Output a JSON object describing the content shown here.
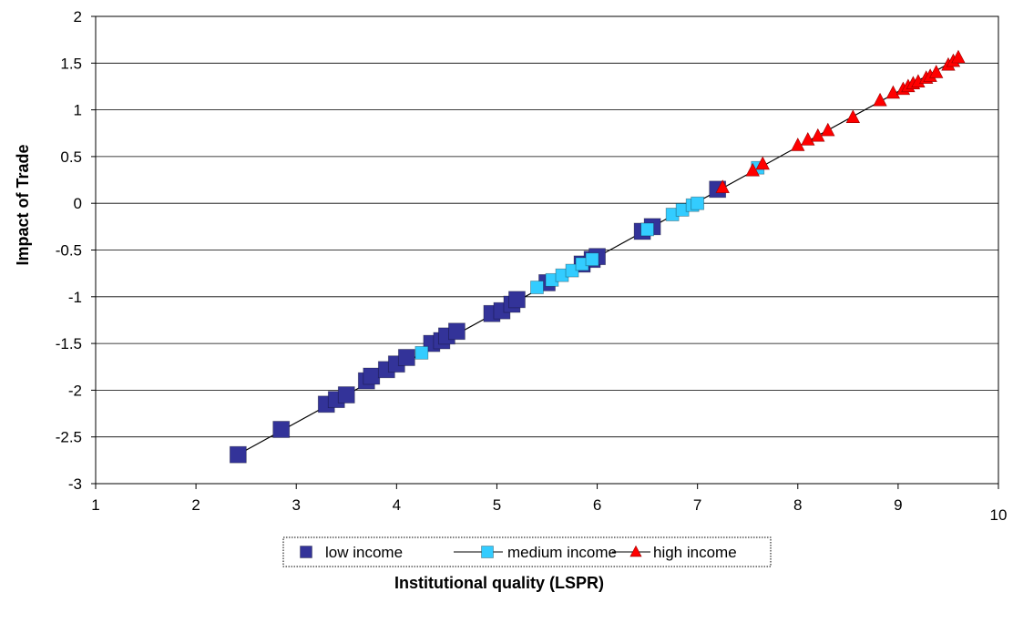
{
  "chart_data": {
    "type": "scatter",
    "title": "",
    "xlabel": "Institutional quality (LSPR)",
    "ylabel": "Impact of Trade",
    "xlim": [
      1,
      10
    ],
    "ylim": [
      -3,
      2
    ],
    "x_ticks": [
      "1",
      "2",
      "3",
      "4",
      "5",
      "6",
      "7",
      "8",
      "9",
      "10"
    ],
    "y_ticks": [
      "2",
      "1.5",
      "1",
      "0.5",
      "0",
      "-0.5",
      "-1",
      "-1.5",
      "-2",
      "-2.5",
      "-3"
    ],
    "grid": "horizontal",
    "legend_position": "bottom",
    "trendline": {
      "x": [
        2.4,
        9.6
      ],
      "y": [
        -2.7,
        1.55
      ],
      "color": "#000000"
    },
    "series": [
      {
        "name": "low income",
        "marker": "square",
        "color": "#333399",
        "x": [
          2.42,
          2.85,
          3.3,
          3.4,
          3.5,
          3.7,
          3.75,
          3.9,
          4.0,
          4.1,
          4.35,
          4.45,
          4.5,
          4.6,
          4.95,
          5.05,
          5.15,
          5.2,
          5.5,
          5.85,
          5.95,
          6.0,
          6.45,
          6.55,
          7.2
        ],
        "y": [
          -2.69,
          -2.42,
          -2.15,
          -2.1,
          -2.05,
          -1.9,
          -1.85,
          -1.78,
          -1.72,
          -1.65,
          -1.5,
          -1.47,
          -1.42,
          -1.37,
          -1.18,
          -1.15,
          -1.08,
          -1.03,
          -0.85,
          -0.65,
          -0.6,
          -0.57,
          -0.3,
          -0.25,
          0.15
        ]
      },
      {
        "name": "medium income",
        "marker": "square",
        "color": "#33ccff",
        "x": [
          4.25,
          5.4,
          5.55,
          5.65,
          5.75,
          5.85,
          5.95,
          6.5,
          6.75,
          6.85,
          6.95,
          7.0,
          7.6
        ],
        "y": [
          -1.6,
          -0.9,
          -0.82,
          -0.77,
          -0.72,
          -0.65,
          -0.6,
          -0.28,
          -0.12,
          -0.07,
          -0.02,
          0.0,
          0.38
        ]
      },
      {
        "name": "high income",
        "marker": "triangle",
        "color": "#ff0000",
        "x": [
          7.25,
          7.55,
          7.65,
          8.0,
          8.1,
          8.2,
          8.3,
          8.55,
          8.82,
          8.95,
          9.05,
          9.1,
          9.15,
          9.2,
          9.28,
          9.32,
          9.38,
          9.5,
          9.55,
          9.6
        ],
        "y": [
          0.17,
          0.35,
          0.42,
          0.62,
          0.68,
          0.72,
          0.78,
          0.92,
          1.1,
          1.18,
          1.22,
          1.25,
          1.28,
          1.3,
          1.34,
          1.36,
          1.4,
          1.48,
          1.52,
          1.56
        ]
      }
    ]
  }
}
